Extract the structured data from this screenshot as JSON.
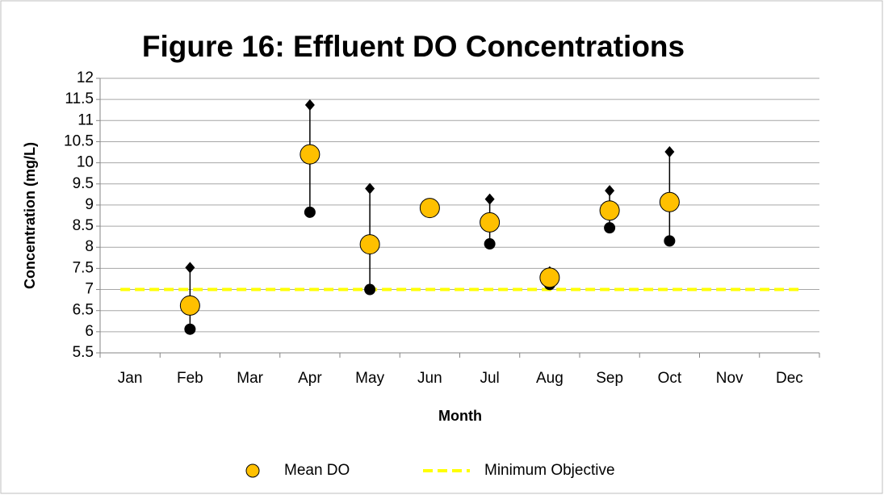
{
  "chart_data": {
    "type": "scatter",
    "title": "Figure 16:  Effluent DO Concentrations",
    "x_label": "Month",
    "y_label": "Concentration (mg/L)",
    "categories": [
      "Jan",
      "Feb",
      "Mar",
      "Apr",
      "May",
      "Jun",
      "Jul",
      "Aug",
      "Sep",
      "Oct",
      "Nov",
      "Dec"
    ],
    "series": [
      {
        "name": "Mean DO",
        "color": "#ffc000",
        "values": [
          null,
          6.62,
          null,
          10.2,
          8.07,
          8.93,
          8.59,
          7.28,
          8.87,
          9.07,
          null,
          null
        ]
      },
      {
        "color": "#000000",
        "values": [
          null,
          7.52,
          null,
          11.37,
          9.39,
          8.95,
          9.14,
          7.42,
          9.34,
          10.26,
          null,
          null
        ]
      },
      {
        "color": "#000000",
        "values": [
          null,
          6.06,
          null,
          8.83,
          7.0,
          8.83,
          8.08,
          7.12,
          8.46,
          8.15,
          null,
          null
        ]
      }
    ],
    "objective": {
      "name": "Minimum Objective",
      "color": "#ffff00",
      "value": 7
    },
    "ylim": [
      5.5,
      12
    ],
    "yticks": [
      5.5,
      6,
      6.5,
      7,
      7.5,
      8,
      8.5,
      9,
      9.5,
      10,
      10.5,
      11,
      11.5,
      12
    ],
    "grid": true,
    "legend": "bottom"
  }
}
